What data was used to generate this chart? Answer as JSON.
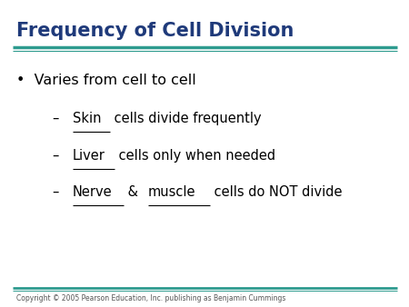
{
  "title": "Frequency of Cell Division",
  "title_color": "#1F3A7A",
  "title_fontsize": 15,
  "bg_color": "#FFFFFF",
  "line_color": "#2E9B8F",
  "bullet_text": "Varies from cell to cell",
  "sub_items": [
    {
      "prefix": "–  ",
      "parts": [
        {
          "text": "Skin",
          "underline": true
        },
        {
          "text": " cells divide frequently",
          "underline": false
        }
      ]
    },
    {
      "prefix": "–  ",
      "parts": [
        {
          "text": "Liver",
          "underline": true
        },
        {
          "text": " cells only when needed",
          "underline": false
        }
      ]
    },
    {
      "prefix": "–  ",
      "parts": [
        {
          "text": "Nerve",
          "underline": true
        },
        {
          "text": " & ",
          "underline": false
        },
        {
          "text": "muscle",
          "underline": true
        },
        {
          "text": " cells do NOT divide",
          "underline": false
        }
      ]
    }
  ],
  "copyright": "Copyright © 2005 Pearson Education, Inc. publishing as Benjamin Cummings",
  "copyright_fontsize": 5.5,
  "text_color": "#000000",
  "main_fontsize": 11.5,
  "sub_fontsize": 10.5
}
